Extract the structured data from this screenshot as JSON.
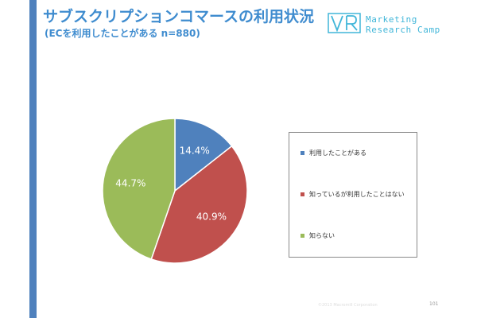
{
  "header": {
    "title": "サブスクリプションコマースの利用状況",
    "subtitle": "(ECを利用したことがある n=880)"
  },
  "logo": {
    "line1": "Marketing",
    "line2": "Research Camp",
    "color": "#41b6d9"
  },
  "chart_data": {
    "type": "pie",
    "title": "",
    "categories": [
      "利用したことがある",
      "知っているが利用したことはない",
      "知らない"
    ],
    "values": [
      14.4,
      40.9,
      44.7
    ],
    "labels": [
      "14.4%",
      "40.9%",
      "44.7%"
    ],
    "colors": [
      "#4f81bd",
      "#c0504d",
      "#9bbb59"
    ],
    "legend_position": "right"
  },
  "footer": {
    "note": "©2013 Macromill Corporation",
    "page_number": "101"
  },
  "theme": {
    "accent": "#4f81bd",
    "title_color": "#3f8ccf"
  }
}
